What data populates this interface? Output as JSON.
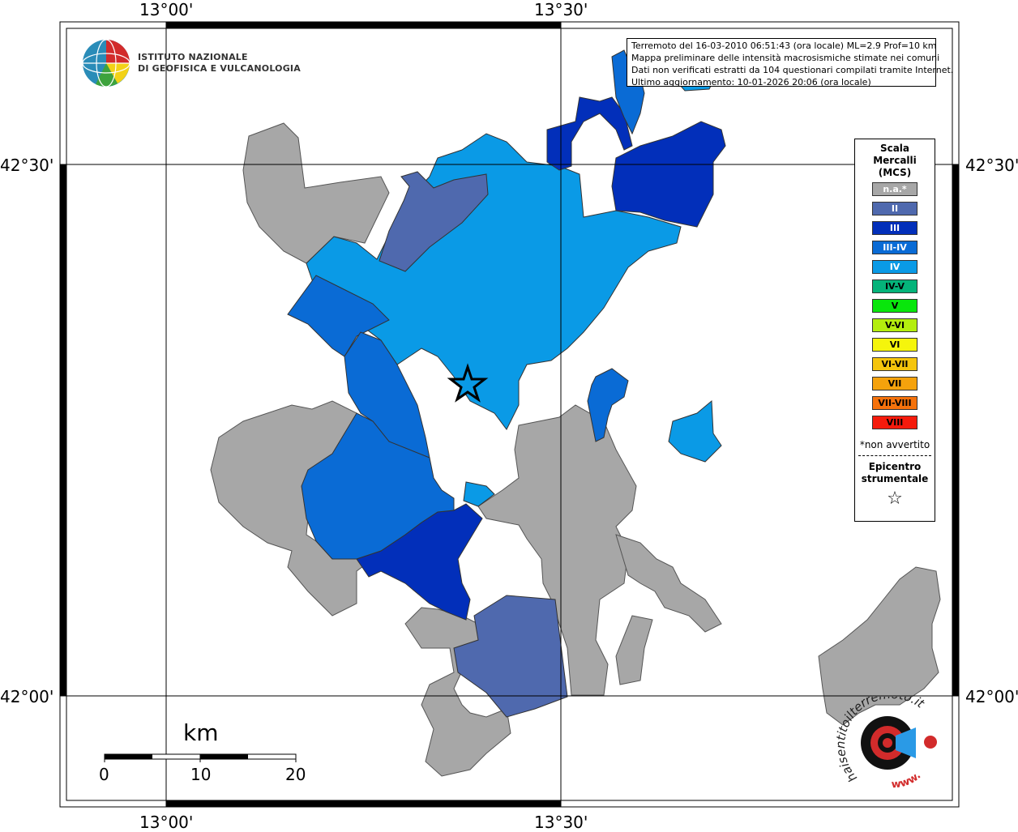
{
  "grid_labels": {
    "lon_west": "13°00'",
    "lon_east": "13°30'",
    "lat_north": "42°30'",
    "lat_south": "42°00'"
  },
  "institute": {
    "line1": "ISTITUTO NAZIONALE",
    "line2": "DI GEOFISICA E VULCANOLOGIA"
  },
  "event_info": {
    "line1": "Terremoto del 16-03-2010 06:51:43 (ora locale) ML=2.9 Prof=10 km",
    "line2": "Mappa preliminare delle intensità macrosismiche stimate nei comuni",
    "line3": "Dati non verificati estratti da 104 questionari compilati tramite Internet.",
    "line4": "Ultimo aggiornamento: 10-01-2026 20:06 (ora locale)"
  },
  "legend": {
    "title_line1": "Scala",
    "title_line2": "Mercalli",
    "title_line3": "(MCS)",
    "items": [
      {
        "label": "n.a.*",
        "color": "#a7a7a7",
        "text_color": "#ffffff"
      },
      {
        "label": "II",
        "color": "#4f69ae",
        "text_color": "#ffffff"
      },
      {
        "label": "III",
        "color": "#022fba",
        "text_color": "#ffffff"
      },
      {
        "label": "III-IV",
        "color": "#0a6bd5",
        "text_color": "#ffffff"
      },
      {
        "label": "IV",
        "color": "#0a9ae6",
        "text_color": "#ffffff"
      },
      {
        "label": "IV-V",
        "color": "#05b37a",
        "text_color": "#000000"
      },
      {
        "label": "V",
        "color": "#09e60c",
        "text_color": "#000000"
      },
      {
        "label": "V-VI",
        "color": "#b4ee0e",
        "text_color": "#000000"
      },
      {
        "label": "VI",
        "color": "#f5f50c",
        "text_color": "#000000"
      },
      {
        "label": "VI-VII",
        "color": "#f5c50c",
        "text_color": "#000000"
      },
      {
        "label": "VII",
        "color": "#f5a20c",
        "text_color": "#000000"
      },
      {
        "label": "VII-VIII",
        "color": "#f5720c",
        "text_color": "#000000"
      },
      {
        "label": "VIII",
        "color": "#f51b0c",
        "text_color": "#000000"
      }
    ],
    "note": "*non avvertito",
    "epicenter_line1": "Epicentro",
    "epicenter_line2": "strumentale",
    "epicenter_symbol": "☆"
  },
  "scale_bar": {
    "unit": "km",
    "ticks": [
      "0",
      "10",
      "20"
    ]
  },
  "hai_sentito": {
    "text": "haisentitoilterremoto.it",
    "www": "www."
  }
}
